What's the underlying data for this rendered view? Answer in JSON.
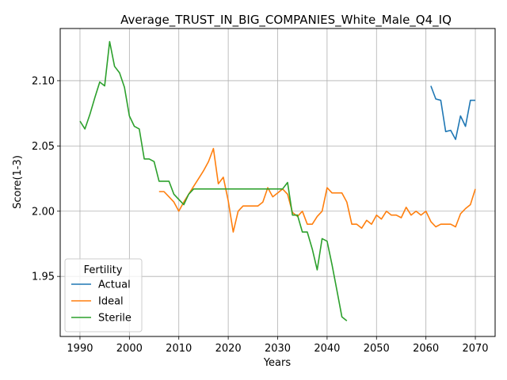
{
  "chart_data": {
    "type": "line",
    "title": "Average_TRUST_IN_BIG_COMPANIES_White_Male_Q4_IQ",
    "xlabel": "Years",
    "ylabel": "Score(1-3)",
    "xlim": [
      1986,
      2074
    ],
    "ylim": [
      1.904,
      2.14
    ],
    "xticks": [
      1990,
      2000,
      2010,
      2020,
      2030,
      2040,
      2050,
      2060,
      2070
    ],
    "yticks": [
      1.95,
      2.0,
      2.05,
      2.1
    ],
    "ytick_labels": [
      "1.95",
      "2.00",
      "2.05",
      "2.10"
    ],
    "grid": true,
    "legend": {
      "title": "Fertility",
      "placement": "lower-left"
    },
    "series": [
      {
        "name": "Actual",
        "color": "#1f77b4",
        "x": [
          2061,
          2062,
          2063,
          2064,
          2065,
          2066,
          2067,
          2068,
          2069,
          2070
        ],
        "y": [
          2.096,
          2.086,
          2.085,
          2.061,
          2.062,
          2.055,
          2.073,
          2.065,
          2.085,
          2.085
        ]
      },
      {
        "name": "Ideal",
        "color": "#ff7f0e",
        "x": [
          2006,
          2007,
          2008,
          2009,
          2010,
          2011,
          2012,
          2013,
          2014,
          2015,
          2016,
          2017,
          2018,
          2019,
          2020,
          2021,
          2022,
          2023,
          2024,
          2025,
          2026,
          2027,
          2028,
          2029,
          2030,
          2031,
          2032,
          2033,
          2034,
          2035,
          2036,
          2037,
          2038,
          2039,
          2040,
          2041,
          2042,
          2043,
          2044,
          2045,
          2046,
          2047,
          2048,
          2049,
          2050,
          2051,
          2052,
          2053,
          2054,
          2055,
          2056,
          2057,
          2058,
          2059,
          2060,
          2061,
          2062,
          2063,
          2064,
          2065,
          2066,
          2067,
          2068,
          2069,
          2070
        ],
        "y": [
          2.015,
          2.015,
          2.011,
          2.007,
          2.0,
          2.007,
          2.013,
          2.019,
          2.025,
          2.031,
          2.038,
          2.048,
          2.021,
          2.026,
          2.008,
          1.984,
          2.0,
          2.004,
          2.004,
          2.004,
          2.004,
          2.007,
          2.018,
          2.011,
          2.014,
          2.017,
          2.013,
          1.999,
          1.996,
          2.0,
          1.99,
          1.99,
          1.996,
          2.0,
          2.018,
          2.014,
          2.014,
          2.014,
          2.007,
          1.99,
          1.99,
          1.987,
          1.993,
          1.99,
          1.997,
          1.994,
          2.0,
          1.997,
          1.997,
          1.995,
          2.003,
          1.997,
          2.0,
          1.997,
          2.0,
          1.992,
          1.988,
          1.99,
          1.99,
          1.99,
          1.988,
          1.998,
          2.002,
          2.005,
          2.017
        ]
      },
      {
        "name": "Sterile",
        "color": "#2ca02c",
        "x": [
          1990,
          1991,
          1992,
          1993,
          1994,
          1995,
          1996,
          1997,
          1998,
          1999,
          2000,
          2001,
          2002,
          2003,
          2004,
          2005,
          2006,
          2007,
          2008,
          2009,
          2010,
          2011,
          2012,
          2013,
          2014,
          2015,
          2016,
          2017,
          2018,
          2019,
          2020,
          2021,
          2022,
          2023,
          2024,
          2025,
          2026,
          2027,
          2028,
          2029,
          2030,
          2031,
          2032,
          2033,
          2034,
          2035,
          2036,
          2037,
          2038,
          2039,
          2040,
          2041,
          2042,
          2043,
          2044
        ],
        "y": [
          2.069,
          2.063,
          2.074,
          2.087,
          2.099,
          2.096,
          2.13,
          2.111,
          2.106,
          2.095,
          2.073,
          2.065,
          2.063,
          2.04,
          2.04,
          2.038,
          2.023,
          2.023,
          2.023,
          2.013,
          2.009,
          2.005,
          2.013,
          2.017,
          2.017,
          2.017,
          2.017,
          2.017,
          2.017,
          2.017,
          2.017,
          2.017,
          2.017,
          2.017,
          2.017,
          2.017,
          2.017,
          2.017,
          2.017,
          2.017,
          2.017,
          2.017,
          2.022,
          1.997,
          1.997,
          1.984,
          1.984,
          1.971,
          1.955,
          1.979,
          1.977,
          1.959,
          1.939,
          1.919,
          1.916
        ]
      }
    ]
  }
}
